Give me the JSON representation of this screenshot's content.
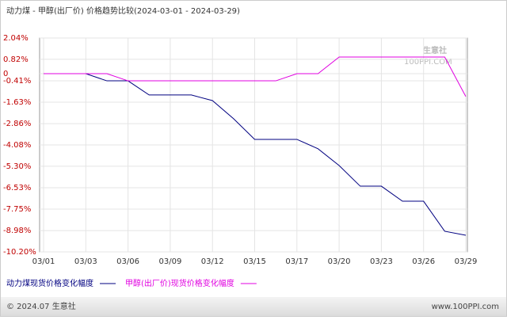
{
  "chart_data": {
    "type": "line",
    "title": "动力煤 - 甲醇(出厂价) 价格趋势比较(2024-03-01 - 2024-03-29)",
    "categories": [
      "03/01",
      null,
      "03/03",
      null,
      "03/06",
      null,
      "03/09",
      null,
      "03/12",
      null,
      "03/15",
      null,
      "03/17",
      null,
      "03/20",
      null,
      "03/23",
      null,
      "03/26",
      null,
      "03/29"
    ],
    "series": [
      {
        "name": "动力煤现货价格变化幅度",
        "color": "#000080",
        "values": [
          0,
          0,
          0,
          -0.41,
          -0.41,
          -1.22,
          -1.22,
          -1.22,
          -1.54,
          -2.58,
          -3.76,
          -3.76,
          -3.76,
          -4.3,
          -5.26,
          -6.44,
          -6.44,
          -7.3,
          -7.3,
          -9.02,
          -9.25
        ]
      },
      {
        "name": "甲醇(出厂价)现货价格变化幅度",
        "color": "#e000e0",
        "values": [
          0,
          0,
          0,
          0,
          -0.41,
          -0.41,
          -0.41,
          -0.41,
          -0.41,
          -0.41,
          -0.41,
          -0.41,
          0,
          0,
          0.95,
          0.95,
          0.95,
          0.95,
          0.95,
          0.95,
          -1.31
        ]
      }
    ],
    "ylim": [
      -10.2,
      2.04
    ],
    "yticks": [
      {
        "value": 2.04,
        "label": "2.04%"
      },
      {
        "value": 0.82,
        "label": "0.82%"
      },
      0,
      {
        "value": -0.41,
        "label": "-0.41%"
      },
      {
        "value": -1.63,
        "label": "-1.63%"
      },
      {
        "value": -2.86,
        "label": "-2.86%"
      },
      {
        "value": -4.08,
        "label": "-4.08%"
      },
      {
        "value": -5.3,
        "label": "-5.30%"
      },
      {
        "value": -6.53,
        "label": "-6.53%"
      },
      {
        "value": -7.75,
        "label": "-7.75%"
      },
      {
        "value": -8.98,
        "label": "-8.98%"
      },
      {
        "value": -10.2,
        "label": "-10.20%"
      }
    ],
    "grid": true,
    "watermark": {
      "name": "生意社",
      "url": "100PPI.COM"
    },
    "footer": {
      "copyright": "© 2024.07 生意社",
      "site": "www.100PPI.com"
    }
  }
}
